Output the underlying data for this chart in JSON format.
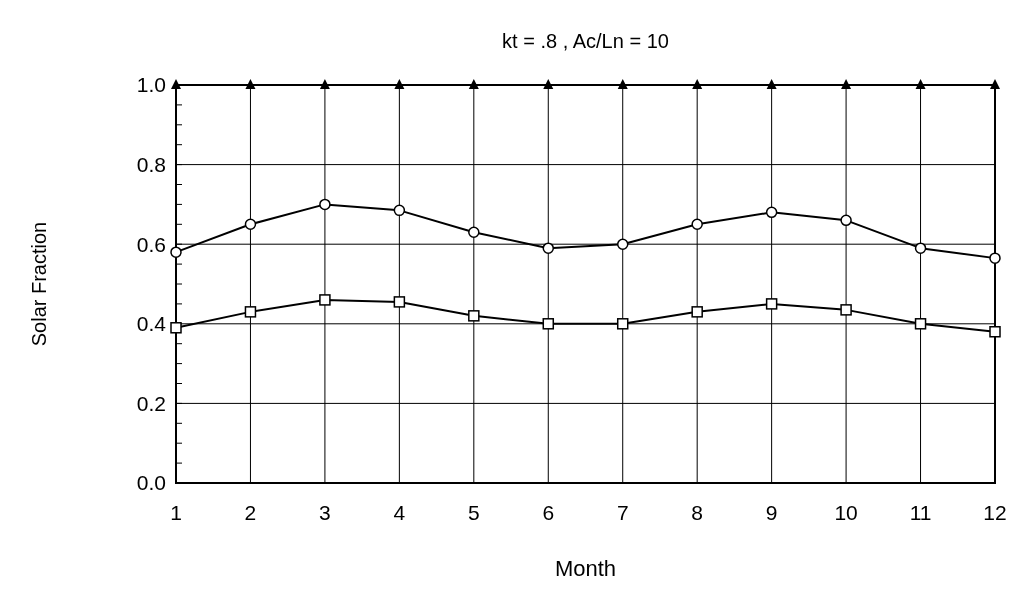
{
  "chart_data": {
    "type": "line",
    "title": "kt = .8 , Ac/Ln = 10",
    "xlabel": "Month",
    "ylabel": "Solar Fraction",
    "x": [
      1,
      2,
      3,
      4,
      5,
      6,
      7,
      8,
      9,
      10,
      11,
      12
    ],
    "xlim": [
      1,
      12
    ],
    "xticks": [
      1,
      2,
      3,
      4,
      5,
      6,
      7,
      8,
      9,
      10,
      11,
      12
    ],
    "ylim": [
      0,
      1
    ],
    "yticks": [
      {
        "value": 0,
        "label": "0.0"
      },
      {
        "value": 0.2,
        "label": "0.2"
      },
      {
        "value": 0.4,
        "label": "0.4"
      },
      {
        "value": 0.6,
        "label": "0.6"
      },
      {
        "value": 0.8,
        "label": "0.8"
      },
      {
        "value": 1,
        "label": "1.0"
      }
    ],
    "grid": true,
    "line_style": "solid",
    "series": [
      {
        "color": "#000000",
        "marker": "triangle",
        "values": [
          1,
          1,
          1,
          1,
          1,
          1,
          1,
          1,
          1,
          1,
          1,
          1
        ]
      },
      {
        "color": "#000000",
        "marker": "circle",
        "values": [
          0.58,
          0.65,
          0.7,
          0.685,
          0.63,
          0.59,
          0.6,
          0.65,
          0.68,
          0.66,
          0.59,
          0.565
        ]
      },
      {
        "color": "#000000",
        "marker": "square",
        "values": [
          0.39,
          0.43,
          0.46,
          0.455,
          0.42,
          0.4,
          0.4,
          0.43,
          0.45,
          0.435,
          0.4,
          0.38
        ]
      }
    ]
  }
}
